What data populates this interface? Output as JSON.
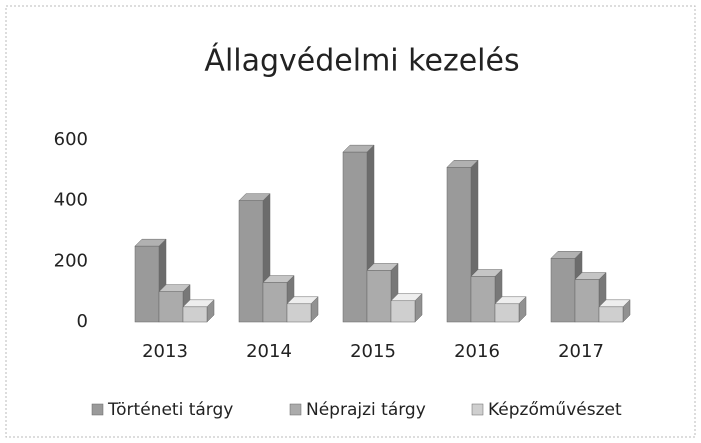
{
  "chart_data": {
    "type": "bar3d",
    "title": "Állagvédelmi kezelés",
    "categories": [
      "2013",
      "2014",
      "2015",
      "2016",
      "2017"
    ],
    "series": [
      {
        "name": "Történeti tárgy",
        "color": "#9a9a9a",
        "values": [
          250,
          400,
          560,
          510,
          210
        ]
      },
      {
        "name": "Néprajzi tárgy",
        "color": "#ababab",
        "values": [
          100,
          130,
          170,
          150,
          140
        ]
      },
      {
        "name": "Képzőművészet",
        "color": "#cfcfcf",
        "values": [
          50,
          60,
          70,
          60,
          50
        ]
      }
    ],
    "ylim": [
      0,
      600
    ],
    "yticks": [
      0,
      200,
      400,
      600
    ],
    "grid": false,
    "legend": "bottom"
  }
}
